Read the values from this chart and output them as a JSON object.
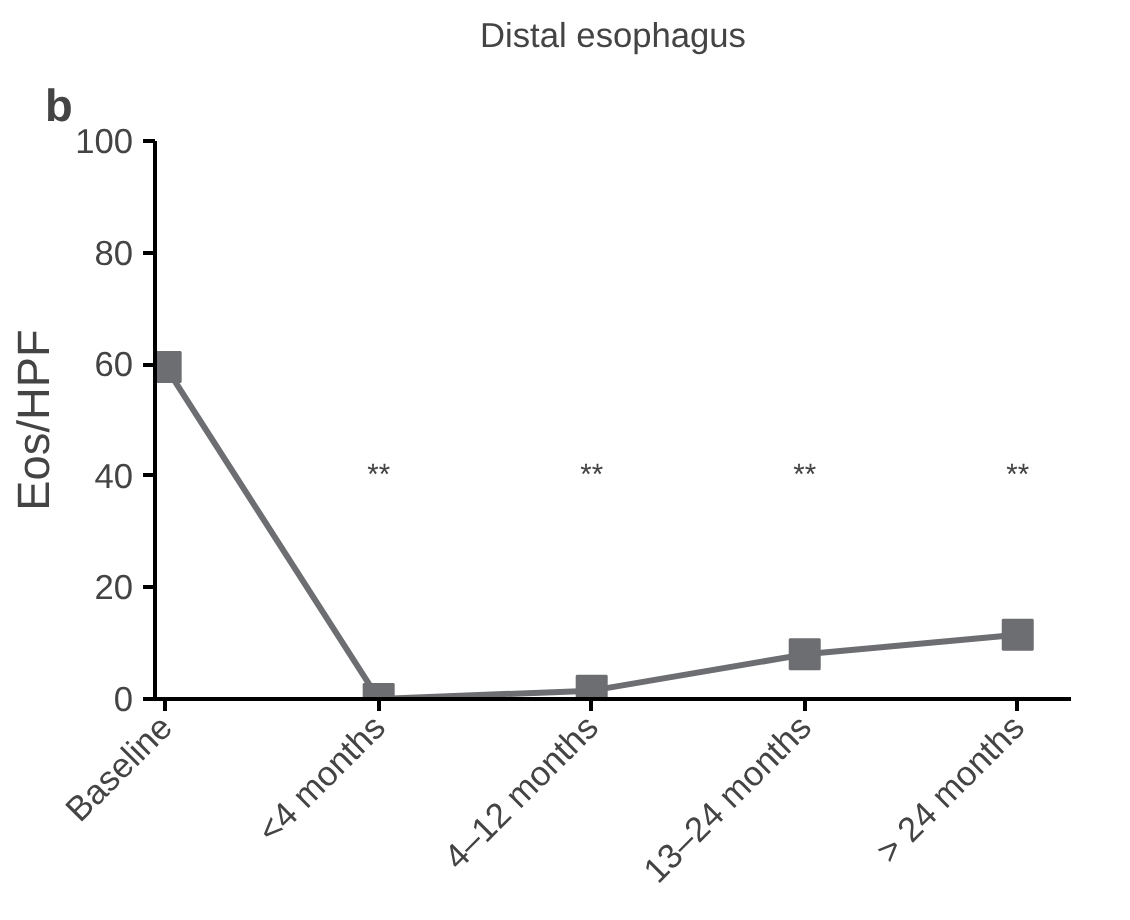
{
  "chart_data": {
    "type": "line",
    "title": "Distal esophagus",
    "ylabel": "Eos/HPF",
    "categories": [
      "Baseline",
      "<4 months",
      "4–12 months",
      "13–24 months",
      "> 24 months"
    ],
    "series": [
      {
        "color": "#6d6e71",
        "values": [
          59.5,
          0,
          1.5,
          8,
          11.5
        ]
      }
    ],
    "ylim": [
      0,
      100
    ],
    "yticks": [
      0,
      20,
      40,
      60,
      80,
      100
    ],
    "annotations": [
      "b",
      "**",
      "**",
      "**",
      "**"
    ],
    "grid": false,
    "marker": "square",
    "line_style": "solid"
  }
}
